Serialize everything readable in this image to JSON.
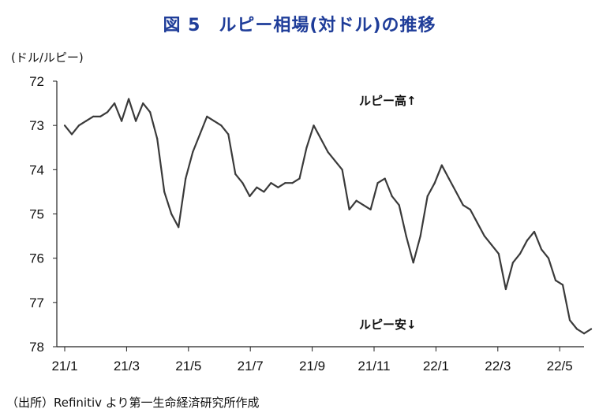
{
  "title": "図 5　ルピー相場(対ドル)の推移",
  "source": "（出所）Refinitiv より第一生命経済研究所作成",
  "chart_data": {
    "type": "line",
    "unit_label": "(ドル/ルピー)",
    "annotations": {
      "high": "ルピー高↑",
      "low": "ルピー安↓"
    },
    "y_inverted": true,
    "ylim": [
      72,
      78
    ],
    "y_ticks": [
      "72",
      "73",
      "74",
      "75",
      "76",
      "77",
      "78"
    ],
    "x_ticks": [
      "21/1",
      "21/3",
      "21/5",
      "21/7",
      "21/9",
      "21/11",
      "22/1",
      "22/3",
      "22/5"
    ],
    "grid": false,
    "series": [
      {
        "color": "#3a3a3a",
        "x": [
          "2021-01-01",
          "2021-01-08",
          "2021-01-15",
          "2021-01-22",
          "2021-01-29",
          "2021-02-05",
          "2021-02-12",
          "2021-02-19",
          "2021-02-26",
          "2021-03-05",
          "2021-03-12",
          "2021-03-19",
          "2021-03-26",
          "2021-04-02",
          "2021-04-09",
          "2021-04-16",
          "2021-04-23",
          "2021-04-30",
          "2021-05-07",
          "2021-05-14",
          "2021-05-21",
          "2021-05-28",
          "2021-06-04",
          "2021-06-11",
          "2021-06-18",
          "2021-06-25",
          "2021-07-02",
          "2021-07-09",
          "2021-07-16",
          "2021-07-23",
          "2021-07-30",
          "2021-08-06",
          "2021-08-13",
          "2021-08-20",
          "2021-08-27",
          "2021-09-03",
          "2021-09-10",
          "2021-09-17",
          "2021-09-24",
          "2021-10-01",
          "2021-10-08",
          "2021-10-15",
          "2021-10-22",
          "2021-10-29",
          "2021-11-05",
          "2021-11-12",
          "2021-11-19",
          "2021-11-26",
          "2021-12-03",
          "2021-12-10",
          "2021-12-17",
          "2021-12-24",
          "2021-12-31",
          "2022-01-07",
          "2022-01-14",
          "2022-01-21",
          "2022-01-28",
          "2022-02-04",
          "2022-02-11",
          "2022-02-18",
          "2022-02-25",
          "2022-03-04",
          "2022-03-11",
          "2022-03-18",
          "2022-03-25",
          "2022-04-01",
          "2022-04-08",
          "2022-04-15",
          "2022-04-22",
          "2022-04-29",
          "2022-05-06",
          "2022-05-13",
          "2022-05-20",
          "2022-05-27",
          "2022-06-03"
        ],
        "values": [
          73.0,
          73.2,
          73.0,
          72.9,
          72.8,
          72.8,
          72.7,
          72.5,
          72.9,
          72.4,
          72.9,
          72.5,
          72.7,
          73.3,
          74.5,
          75.0,
          75.3,
          74.2,
          73.6,
          73.2,
          72.8,
          72.9,
          73.0,
          73.2,
          74.1,
          74.3,
          74.6,
          74.4,
          74.5,
          74.3,
          74.4,
          74.3,
          74.3,
          74.2,
          73.5,
          73.0,
          73.3,
          73.6,
          73.8,
          74.0,
          74.9,
          74.7,
          74.8,
          74.9,
          74.3,
          74.2,
          74.6,
          74.8,
          75.5,
          76.1,
          75.5,
          74.6,
          74.3,
          73.9,
          74.2,
          74.5,
          74.8,
          74.9,
          75.2,
          75.5,
          75.7,
          75.9,
          76.7,
          76.1,
          75.9,
          75.6,
          75.4,
          75.8,
          76.0,
          76.5,
          76.6,
          77.4,
          77.6,
          77.7,
          77.6
        ]
      }
    ]
  }
}
